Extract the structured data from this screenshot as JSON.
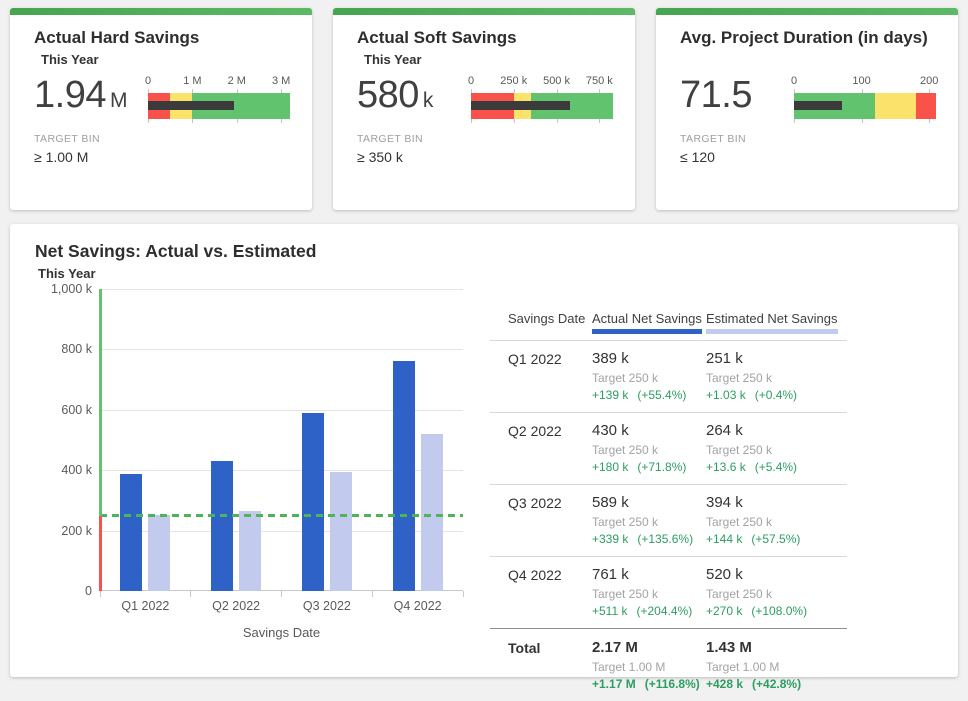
{
  "theme": {
    "background": "#f1f1f1",
    "card_strip_green": "#4caf50",
    "bullet_red": "#f8524a",
    "bullet_yellow": "#fbe26b",
    "bullet_green": "#62c36f",
    "bullet_bar": "#3b3b3b",
    "actual_blue": "#2f62c6",
    "estimated_lavender": "#c2cbee",
    "variance_green": "#2c9e60",
    "target_dash_green": "#4db45c"
  },
  "chart_data": [
    {
      "type": "bullet",
      "title": "Actual Hard Savings",
      "subtitle": "This Year",
      "value": 1.94,
      "value_display": "1.94",
      "unit": "M",
      "axis_max": 3.2,
      "ticks": [
        {
          "label": "0",
          "v": 0
        },
        {
          "label": "1 M",
          "v": 1
        },
        {
          "label": "2 M",
          "v": 2
        },
        {
          "label": "3 M",
          "v": 3
        }
      ],
      "bands": [
        {
          "color": "#f8524a",
          "from": 0,
          "to": 0.5
        },
        {
          "color": "#fbe26b",
          "from": 0.5,
          "to": 1
        },
        {
          "color": "#62c36f",
          "from": 1,
          "to": 3.2
        }
      ],
      "bar_color": "#3b3b3b",
      "target_bin_label": "TARGET BIN",
      "target_bin": "≥ 1.00 M"
    },
    {
      "type": "bullet",
      "title": "Actual Soft Savings",
      "subtitle": "This Year",
      "value": 580,
      "value_display": "580",
      "unit": "k",
      "axis_max": 830,
      "ticks": [
        {
          "label": "0",
          "v": 0
        },
        {
          "label": "250 k",
          "v": 250
        },
        {
          "label": "500 k",
          "v": 500
        },
        {
          "label": "750 k",
          "v": 750
        }
      ],
      "bands": [
        {
          "color": "#f8524a",
          "from": 0,
          "to": 250
        },
        {
          "color": "#fbe26b",
          "from": 250,
          "to": 350
        },
        {
          "color": "#62c36f",
          "from": 350,
          "to": 830
        }
      ],
      "bar_color": "#3b3b3b",
      "target_bin_label": "TARGET BIN",
      "target_bin": "≥ 350 k"
    },
    {
      "type": "bullet",
      "title": "Avg. Project Duration (in days)",
      "subtitle": "",
      "value": 71.5,
      "value_display": "71.5",
      "unit": "",
      "axis_max": 210,
      "ticks": [
        {
          "label": "0",
          "v": 0
        },
        {
          "label": "100",
          "v": 100
        },
        {
          "label": "200",
          "v": 200
        }
      ],
      "bands": [
        {
          "color": "#62c36f",
          "from": 0,
          "to": 120
        },
        {
          "color": "#fbe26b",
          "from": 120,
          "to": 180
        },
        {
          "color": "#f8524a",
          "from": 180,
          "to": 210
        }
      ],
      "bar_color": "#3b3b3b",
      "target_bin_label": "TARGET BIN",
      "target_bin": "≤ 120"
    },
    {
      "type": "bar",
      "title": "Net Savings: Actual vs. Estimated",
      "subtitle": "This Year",
      "xlabel": "Savings Date",
      "unit": "k",
      "categories": [
        "Q1 2022",
        "Q2 2022",
        "Q3 2022",
        "Q4 2022"
      ],
      "series": [
        {
          "name": "Actual Net Savings",
          "color": "#2f62c6",
          "values": [
            389,
            430,
            589,
            761
          ]
        },
        {
          "name": "Estimated Net Savings",
          "color": "#c2cbee",
          "values": [
            251,
            264,
            394,
            520
          ]
        }
      ],
      "ylim": [
        0,
        1000
      ],
      "yticks": [
        {
          "label": "1,000 k",
          "v": 1000
        },
        {
          "label": "800 k",
          "v": 800
        },
        {
          "label": "600 k",
          "v": 600
        },
        {
          "label": "400 k",
          "v": 400
        },
        {
          "label": "200 k",
          "v": 200
        },
        {
          "label": "0",
          "v": 0
        }
      ],
      "target": {
        "value": 250,
        "color": "#4db45c"
      },
      "axis_colors": {
        "above_target": "#62c36f",
        "below_target": "#f8524a"
      },
      "grid": true,
      "legend_position": "table-headers"
    },
    {
      "type": "table",
      "columns": [
        "Savings Date",
        "Actual Net Savings",
        "Estimated Net Savings"
      ],
      "variance_color": "#2c9e60",
      "rows": [
        {
          "date": "Q1 2022",
          "actual": {
            "value": "389 k",
            "target": "Target 250 k",
            "variance": "+139 k",
            "variance_pct": "(+55.4%)"
          },
          "estimated": {
            "value": "251 k",
            "target": "Target 250 k",
            "variance": "+1.03 k",
            "variance_pct": "(+0.4%)"
          }
        },
        {
          "date": "Q2 2022",
          "actual": {
            "value": "430 k",
            "target": "Target 250 k",
            "variance": "+180 k",
            "variance_pct": "(+71.8%)"
          },
          "estimated": {
            "value": "264 k",
            "target": "Target 250 k",
            "variance": "+13.6 k",
            "variance_pct": "(+5.4%)"
          }
        },
        {
          "date": "Q3 2022",
          "actual": {
            "value": "589 k",
            "target": "Target 250 k",
            "variance": "+339 k",
            "variance_pct": "(+135.6%)"
          },
          "estimated": {
            "value": "394 k",
            "target": "Target 250 k",
            "variance": "+144 k",
            "variance_pct": "(+57.5%)"
          }
        },
        {
          "date": "Q4 2022",
          "actual": {
            "value": "761 k",
            "target": "Target 250 k",
            "variance": "+511 k",
            "variance_pct": "(+204.4%)"
          },
          "estimated": {
            "value": "520 k",
            "target": "Target 250 k",
            "variance": "+270 k",
            "variance_pct": "(+108.0%)"
          }
        },
        {
          "date": "Total",
          "is_total": true,
          "actual": {
            "value": "2.17 M",
            "target": "Target 1.00 M",
            "variance": "+1.17 M",
            "variance_pct": "(+116.8%)"
          },
          "estimated": {
            "value": "1.43 M",
            "target": "Target 1.00 M",
            "variance": "+428 k",
            "variance_pct": "(+42.8%)"
          }
        }
      ]
    }
  ]
}
